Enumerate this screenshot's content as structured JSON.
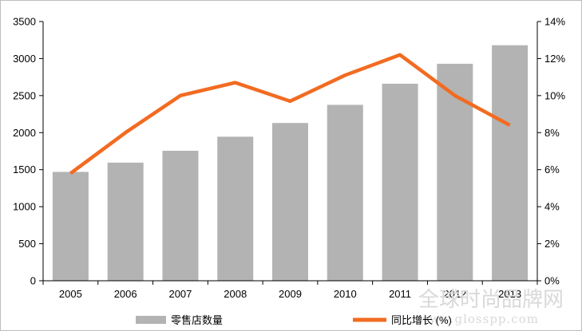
{
  "chart_data": {
    "type": "bar",
    "categories": [
      "2005",
      "2006",
      "2007",
      "2008",
      "2009",
      "2010",
      "2011",
      "2012",
      "2013"
    ],
    "series": [
      {
        "name": "零售店数量",
        "type": "bar",
        "axis": "left",
        "color": "#b3b3b3",
        "values": [
          1470,
          1595,
          1755,
          1945,
          2130,
          2375,
          2660,
          2930,
          3180
        ]
      },
      {
        "name": "同比增长 (%)",
        "type": "line",
        "axis": "right",
        "color": "#f26b21",
        "values": [
          5.8,
          8.0,
          10.0,
          10.7,
          9.7,
          11.1,
          12.2,
          10.0,
          8.4
        ]
      }
    ],
    "y_left": {
      "min": 0,
      "max": 3500,
      "ticks": [
        0,
        500,
        1000,
        1500,
        2000,
        2500,
        3000,
        3500
      ]
    },
    "y_right": {
      "min": 0,
      "max": 14,
      "ticks": [
        "0%",
        "2%",
        "4%",
        "6%",
        "8%",
        "10%",
        "12%",
        "14%"
      ]
    },
    "legend_position": "bottom",
    "grid": false
  },
  "watermark": {
    "text": "全球时尚品牌网",
    "url": "www.glosspp.com"
  }
}
